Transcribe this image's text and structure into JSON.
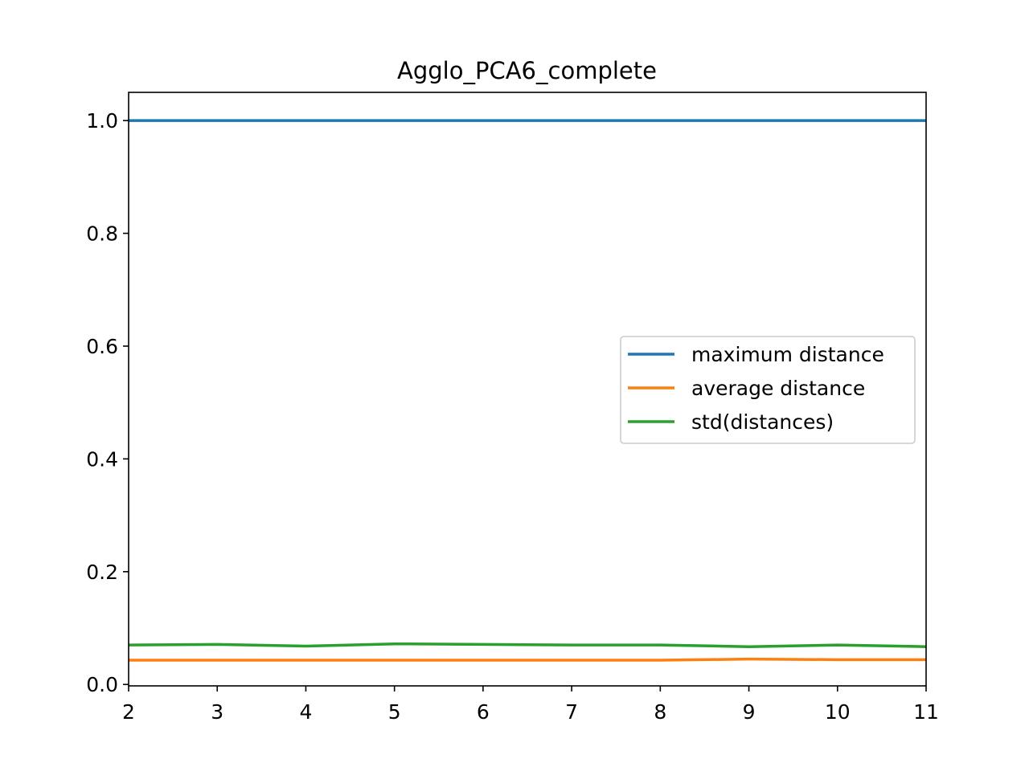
{
  "chart_data": {
    "type": "line",
    "title": "Agglo_PCA6_complete",
    "xlabel": "",
    "ylabel": "",
    "x": [
      2,
      3,
      4,
      5,
      6,
      7,
      8,
      9,
      10,
      11
    ],
    "xlim": [
      2,
      11
    ],
    "ylim": [
      -0.0025,
      1.05
    ],
    "xticks": [
      2,
      3,
      4,
      5,
      6,
      7,
      8,
      9,
      10,
      11
    ],
    "yticks": [
      "0.0",
      "0.2",
      "0.4",
      "0.6",
      "0.8",
      "1.0"
    ],
    "grid": false,
    "legend_position": "center-right",
    "series": [
      {
        "name": "maximum distance",
        "color": "#1f77b4",
        "values": [
          1.0,
          1.0,
          1.0,
          1.0,
          1.0,
          1.0,
          1.0,
          1.0,
          1.0,
          1.0
        ]
      },
      {
        "name": "average distance",
        "color": "#ff7f0e",
        "values": [
          0.043,
          0.043,
          0.043,
          0.043,
          0.043,
          0.043,
          0.043,
          0.045,
          0.044,
          0.044
        ]
      },
      {
        "name": "std(distances)",
        "color": "#2ca02c",
        "values": [
          0.07,
          0.071,
          0.068,
          0.072,
          0.071,
          0.07,
          0.07,
          0.067,
          0.07,
          0.067
        ]
      }
    ]
  }
}
